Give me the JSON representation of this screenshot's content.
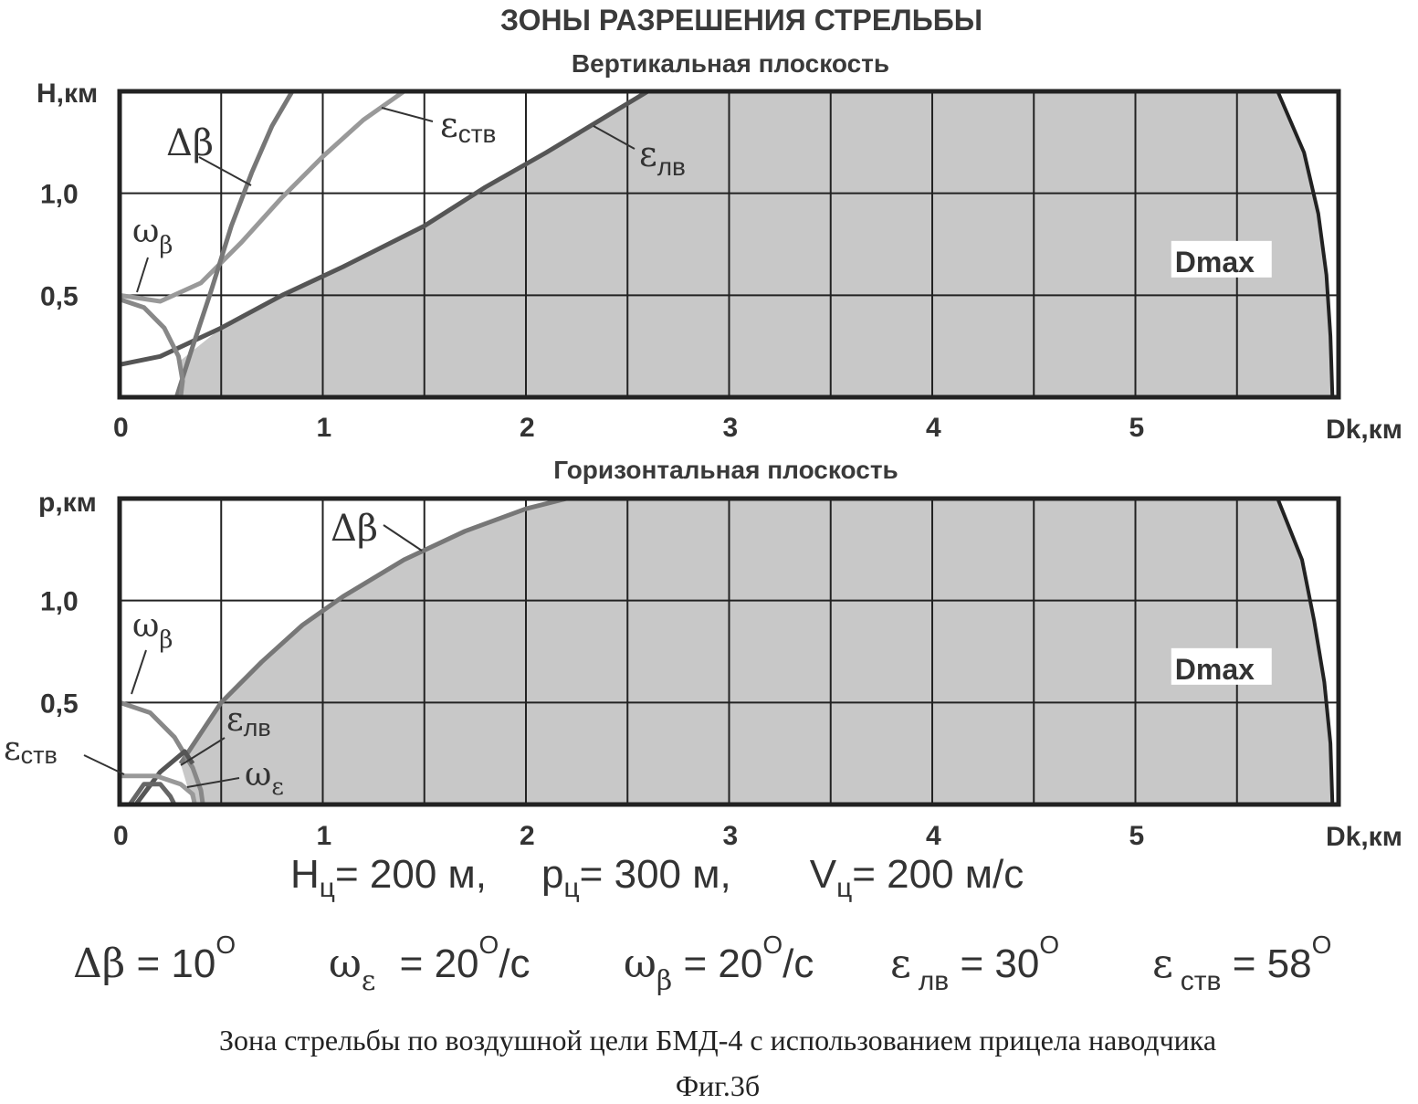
{
  "title": "ЗОНЫ РАЗРЕШЕНИЯ СТРЕЛЬБЫ",
  "chart_data": [
    {
      "type": "line",
      "subtitle": "Вертикальная плоскость",
      "xlabel": "Dk,км",
      "ylabel": "H,км",
      "xlim": [
        0,
        6
      ],
      "ylim": [
        0,
        1.5
      ],
      "x_ticks": [
        "0",
        "1",
        "2",
        "3",
        "4",
        "5"
      ],
      "y_ticks": [
        "0,5",
        "1,0"
      ],
      "grid": true,
      "zone_color": "#c8c8c8",
      "series": [
        {
          "name": "εлв",
          "x": [
            0.0,
            0.2,
            0.5,
            0.8,
            1.1,
            1.5,
            1.8,
            2.1,
            2.4,
            2.6
          ],
          "y": [
            0.16,
            0.2,
            0.34,
            0.5,
            0.64,
            0.84,
            1.03,
            1.2,
            1.38,
            1.5
          ]
        },
        {
          "name": "εств",
          "x": [
            0.0,
            0.2,
            0.4,
            0.6,
            0.8,
            1.0,
            1.2,
            1.4
          ],
          "y": [
            0.5,
            0.47,
            0.56,
            0.76,
            0.98,
            1.18,
            1.36,
            1.5
          ]
        },
        {
          "name": "Δβ",
          "x": [
            0.28,
            0.35,
            0.45,
            0.55,
            0.65,
            0.75,
            0.85
          ],
          "y": [
            0.0,
            0.22,
            0.52,
            0.84,
            1.1,
            1.33,
            1.5
          ]
        },
        {
          "name": "ωβ",
          "x": [
            0.0,
            0.12,
            0.22,
            0.29,
            0.31,
            0.3
          ],
          "y": [
            0.48,
            0.44,
            0.34,
            0.2,
            0.08,
            0.0
          ]
        },
        {
          "name": "Dmax",
          "x": [
            5.7,
            5.83,
            5.9,
            5.94,
            5.96,
            5.97
          ],
          "y": [
            1.5,
            1.2,
            0.9,
            0.6,
            0.3,
            0.0
          ]
        }
      ],
      "labels": [
        "Δβ",
        "εств",
        "εлв",
        "ωβ",
        "Dmax"
      ]
    },
    {
      "type": "line",
      "subtitle": "Горизонтальная плоскость",
      "xlabel": "Dk,км",
      "ylabel": "p,км",
      "xlim": [
        0,
        6
      ],
      "ylim": [
        0,
        1.5
      ],
      "x_ticks": [
        "0",
        "1",
        "2",
        "3",
        "4",
        "5"
      ],
      "y_ticks": [
        "0,5",
        "1,0"
      ],
      "grid": true,
      "zone_color": "#c8c8c8",
      "series": [
        {
          "name": "Δβ",
          "x": [
            0.3,
            0.5,
            0.7,
            0.9,
            1.1,
            1.4,
            1.7,
            2.0,
            2.2
          ],
          "y": [
            0.2,
            0.5,
            0.7,
            0.88,
            1.02,
            1.2,
            1.34,
            1.45,
            1.5
          ]
        },
        {
          "name": "ωβ",
          "x": [
            0.0,
            0.15,
            0.27,
            0.36,
            0.4,
            0.41
          ],
          "y": [
            0.5,
            0.45,
            0.33,
            0.18,
            0.07,
            0.0
          ]
        },
        {
          "name": "εлв",
          "x": [
            0.08,
            0.2,
            0.32,
            0.36
          ],
          "y": [
            0.0,
            0.16,
            0.26,
            0.2
          ]
        },
        {
          "name": "εств",
          "x": [
            0.0,
            0.18,
            0.3,
            0.36,
            0.37
          ],
          "y": [
            0.14,
            0.14,
            0.1,
            0.05,
            0.0
          ]
        },
        {
          "name": "ωε",
          "x": [
            0.05,
            0.12,
            0.2,
            0.25,
            0.27
          ],
          "y": [
            0.0,
            0.1,
            0.1,
            0.04,
            0.0
          ]
        },
        {
          "name": "Dmax",
          "x": [
            5.7,
            5.82,
            5.88,
            5.93,
            5.96,
            5.97
          ],
          "y": [
            1.5,
            1.2,
            0.9,
            0.6,
            0.3,
            0.0
          ]
        }
      ],
      "labels": [
        "Δβ",
        "ωβ",
        "εств",
        "εлв",
        "ωε",
        "Dmax"
      ]
    }
  ],
  "params1": {
    "H_label": "H",
    "H_sub": "ц",
    "H_val": "= 200 м,",
    "p_label": "p",
    "p_sub": "ц",
    "p_val": "= 300 м,",
    "V_label": "V",
    "V_sub": "ц",
    "V_val": "= 200 м/с"
  },
  "params2": {
    "db": "Δβ",
    "db_val": " = 10",
    "deg": "O",
    "we": "ω",
    "we_sub": "ε",
    "we_val": " = 20",
    "we_unit": "/c",
    "wb": "ω",
    "wb_sub": "β",
    "wb_val": " = 20",
    "wb_unit": "/c",
    "elv": "ε",
    "elv_sub": "лв",
    "elv_val": " = 30",
    "estv": "ε",
    "estv_sub": "ств",
    "estv_val": " = 58"
  },
  "caption": "Зона стрельбы по воздушной цели БМД-4 с использованием прицела наводчика",
  "fig": "Фиг.3б"
}
